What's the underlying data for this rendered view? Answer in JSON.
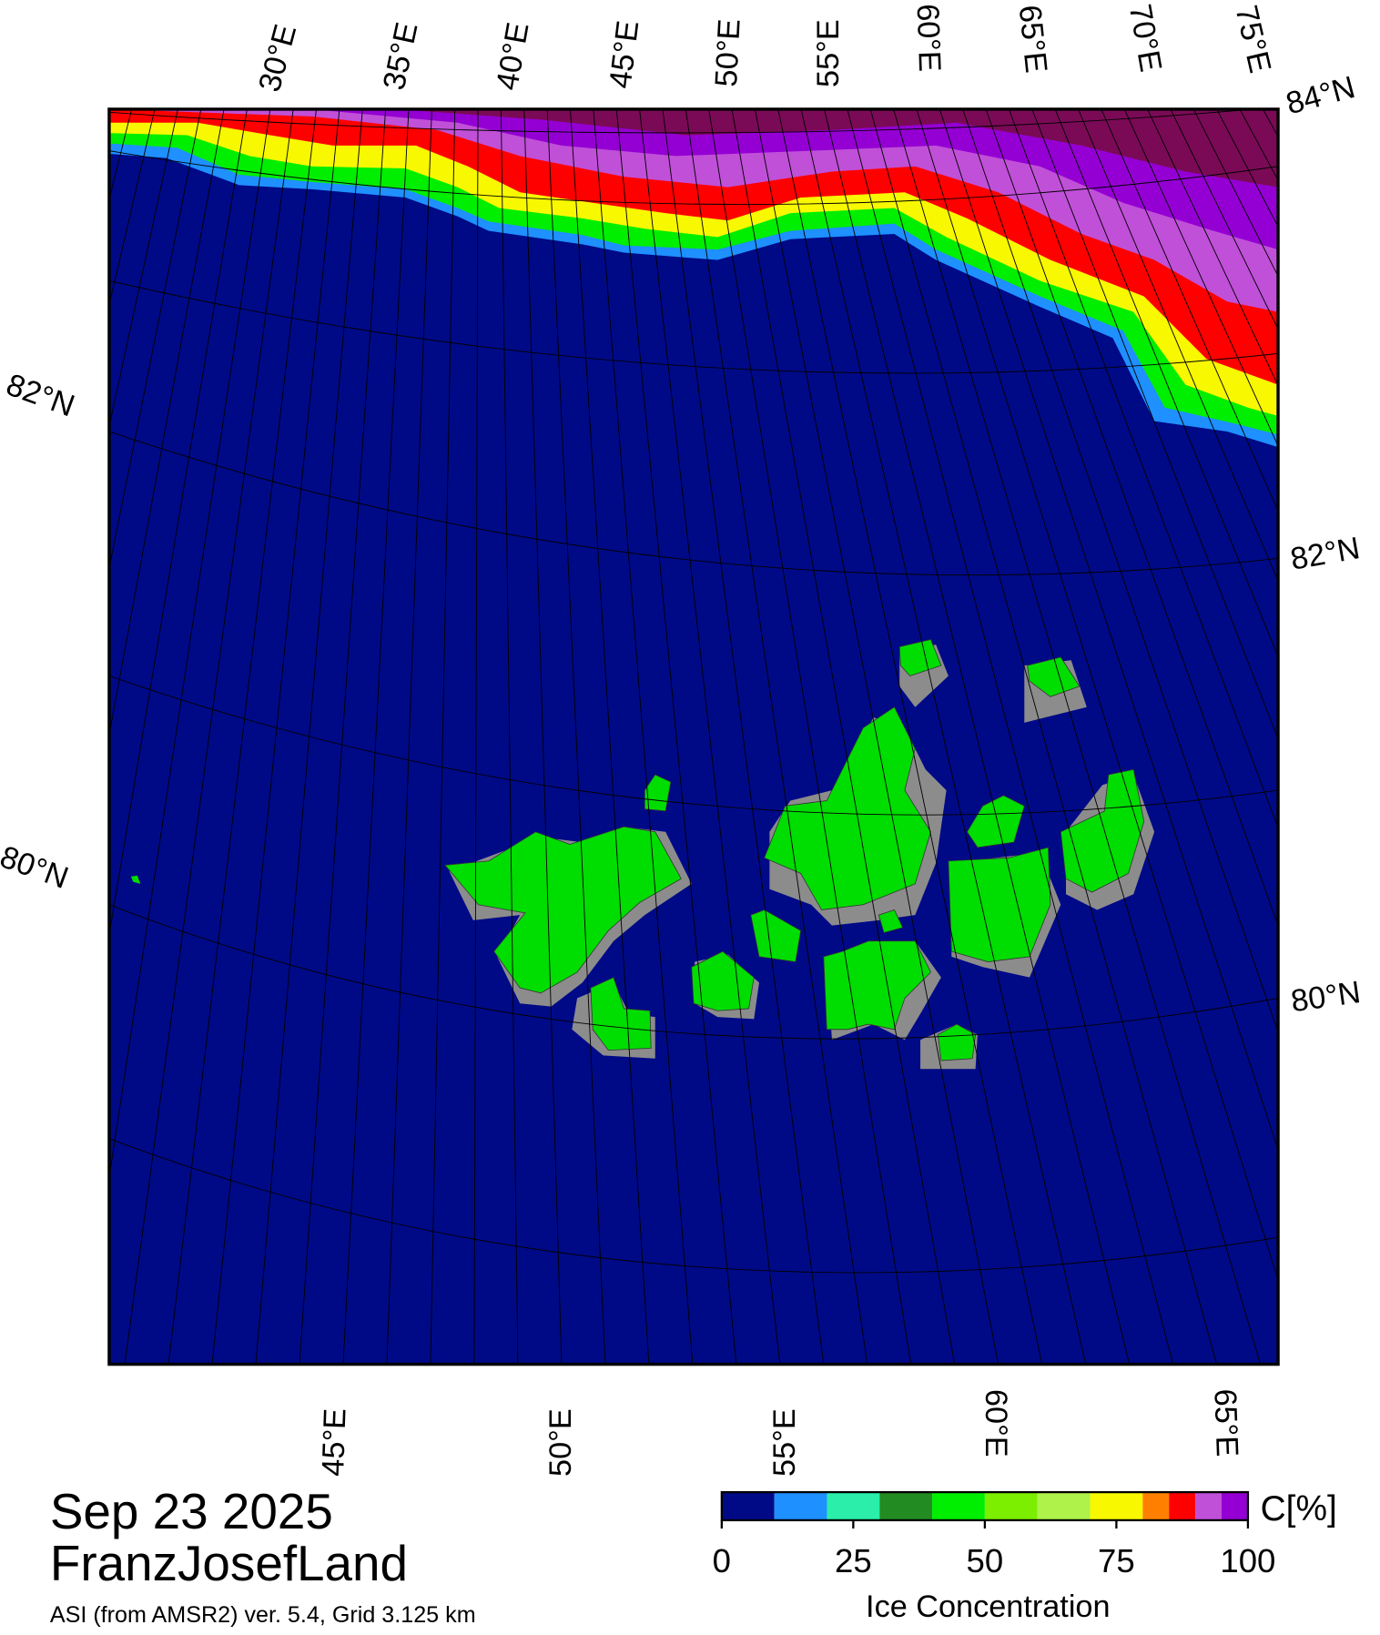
{
  "map": {
    "date": "Sep 23 2025",
    "region": "FranzJosefLand",
    "source": "ASI (from AMSR2) ver. 5.4,  Grid 3.125 km",
    "top_lon_labels": [
      "30°E",
      "35°E",
      "40°E",
      "45°E",
      "50°E",
      "55°E",
      "60°E",
      "65°E",
      "70°E",
      "75°E"
    ],
    "bottom_lon_labels": [
      "45°E",
      "50°E",
      "55°E",
      "60°E",
      "65°E"
    ],
    "lat_labels": {
      "top_right": "84°N",
      "left_upper": "82°N",
      "right_upper": "82°N",
      "left_lower": "80°N",
      "right_lower": "80°N"
    }
  },
  "colorbar": {
    "unit": "C[%]",
    "label": "Ice Concentration",
    "bounds": [
      0,
      10,
      20,
      30,
      40,
      50,
      60,
      70,
      80,
      85,
      90,
      95,
      100
    ],
    "colors": [
      "#000a87",
      "#1e90ff",
      "#2aeeaa",
      "#228b22",
      "#00ee00",
      "#7cee00",
      "#aef24a",
      "#f8f800",
      "#ff8000",
      "#ff0000",
      "#c050d8",
      "#9400d3"
    ],
    "ticks": [
      0,
      25,
      50,
      75,
      100
    ]
  }
}
